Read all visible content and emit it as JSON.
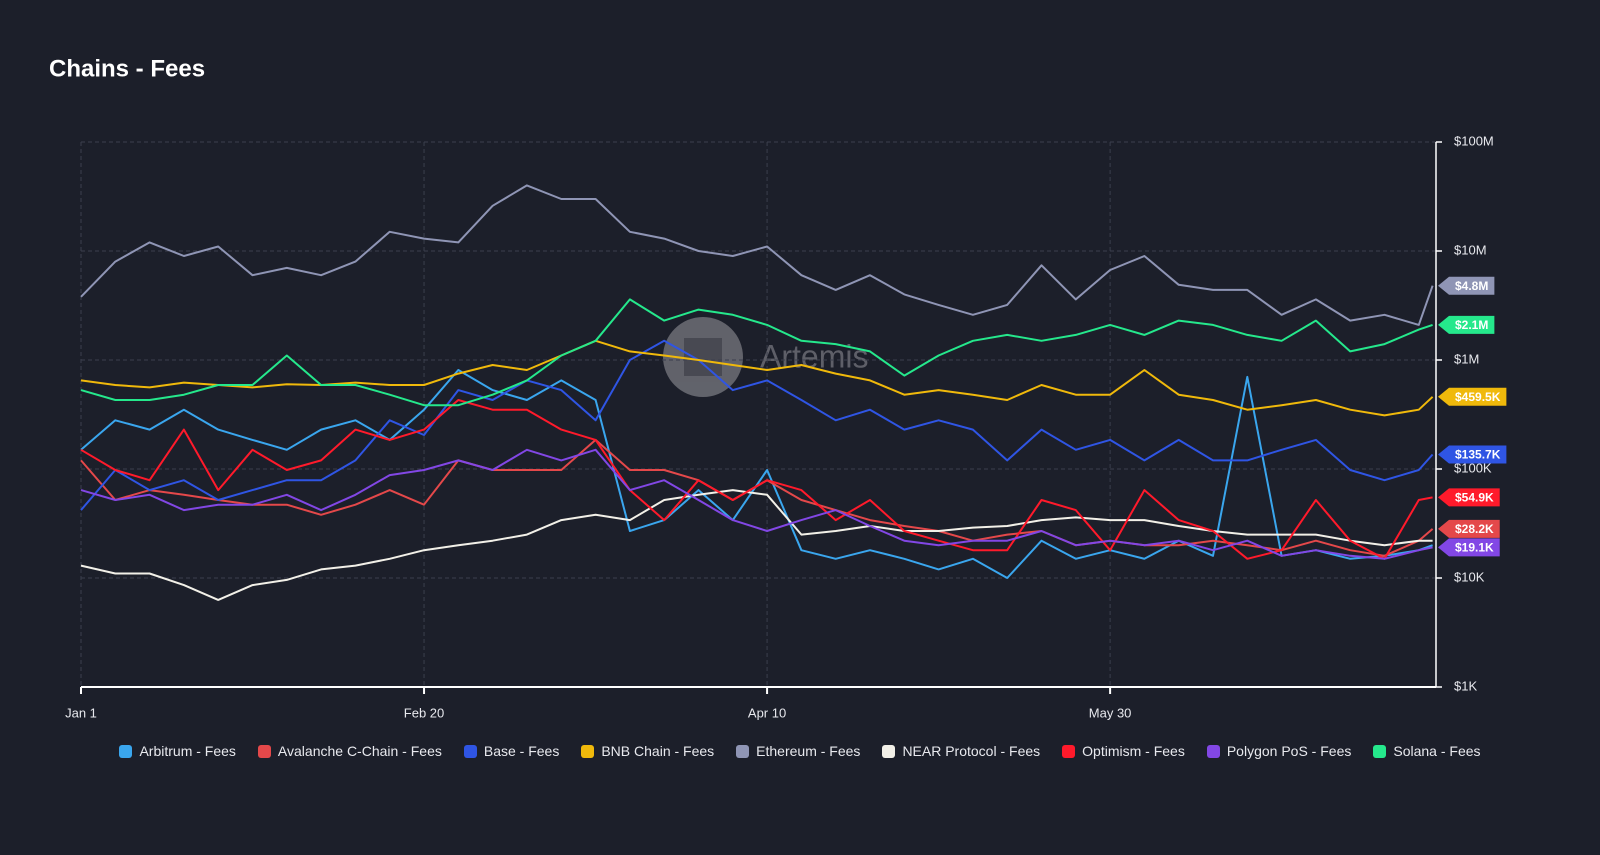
{
  "chart_data": {
    "type": "line",
    "title": "Chains - Fees",
    "watermark": "Artemis",
    "x": [
      0,
      5,
      10,
      15,
      20,
      25,
      30,
      35,
      40,
      45,
      50,
      55,
      60,
      65,
      70,
      75,
      80,
      85,
      90,
      95,
      100,
      105,
      110,
      115,
      120,
      125,
      130,
      135,
      140,
      145,
      150,
      155,
      160,
      165,
      170,
      175,
      180,
      185,
      190,
      195,
      197
    ],
    "xlim": [
      0,
      197.5
    ],
    "xticks": [
      {
        "value": 0,
        "label": "Jan 1"
      },
      {
        "value": 50,
        "label": "Feb 20"
      },
      {
        "value": 100,
        "label": "Apr 10"
      },
      {
        "value": 150,
        "label": "May 30"
      }
    ],
    "yscale": "log",
    "ylim": [
      1000,
      100000000
    ],
    "yticks": [
      {
        "value": 1000,
        "label": "$1K"
      },
      {
        "value": 10000,
        "label": "$10K"
      },
      {
        "value": 100000,
        "label": "$100K"
      },
      {
        "value": 1000000,
        "label": "$1M"
      },
      {
        "value": 10000000,
        "label": "$10M"
      },
      {
        "value": 100000000,
        "label": "$100M"
      }
    ],
    "grid": true,
    "series": [
      {
        "name": "Arbitrum - Fees",
        "color": "#3aa6ee",
        "values": [
          150000,
          280000,
          230000,
          350000,
          230000,
          185000,
          150000,
          230000,
          280000,
          185000,
          350000,
          810000,
          530000,
          430000,
          650000,
          430000,
          27000,
          34000,
          64000,
          34000,
          98000,
          18000,
          15000,
          18000,
          15000,
          12000,
          15000,
          10000,
          22000,
          15000,
          18000,
          15000,
          22000,
          16000,
          700000,
          16000,
          18000,
          15000,
          16000,
          18000,
          20000
        ]
      },
      {
        "name": "Avalanche C-Chain - Fees",
        "color": "#e4484a",
        "values": [
          120000,
          52000,
          64000,
          58000,
          52000,
          47000,
          47000,
          38000,
          47000,
          64000,
          47000,
          120000,
          98000,
          98000,
          98000,
          185000,
          98000,
          98000,
          79000,
          52000,
          79000,
          52000,
          42000,
          34000,
          30000,
          27000,
          22000,
          25000,
          27000,
          20000,
          22000,
          20000,
          20000,
          22000,
          20000,
          18000,
          22000,
          18000,
          16000,
          22000,
          28200
        ],
        "value_labels": [
          null,
          null,
          null,
          null,
          null,
          null,
          null,
          null,
          null,
          null,
          null,
          null,
          null,
          null,
          null,
          null,
          null,
          null,
          null,
          null,
          null,
          null,
          null,
          null,
          null,
          null,
          null,
          null,
          null,
          null,
          null,
          null,
          null,
          null,
          null,
          null,
          null,
          null,
          null,
          null,
          "$28.2K"
        ]
      },
      {
        "name": "Base - Fees",
        "color": "#2f55e4",
        "values": [
          42000,
          98000,
          64000,
          79000,
          52000,
          64000,
          79000,
          79000,
          120000,
          280000,
          205000,
          530000,
          430000,
          650000,
          530000,
          280000,
          1000000,
          1500000,
          1000000,
          530000,
          650000,
          430000,
          280000,
          350000,
          230000,
          280000,
          230000,
          120000,
          230000,
          150000,
          185000,
          120000,
          185000,
          120000,
          120000,
          150000,
          185000,
          98000,
          79000,
          98000,
          135700
        ],
        "value_labels": [
          null,
          null,
          null,
          null,
          null,
          null,
          null,
          null,
          null,
          null,
          null,
          null,
          null,
          null,
          null,
          null,
          null,
          null,
          null,
          null,
          null,
          null,
          null,
          null,
          null,
          null,
          null,
          null,
          null,
          null,
          null,
          null,
          null,
          null,
          null,
          null,
          null,
          null,
          null,
          null,
          "$135.7K"
        ]
      },
      {
        "name": "BNB Chain - Fees",
        "color": "#f0b90b",
        "values": [
          650000,
          590000,
          560000,
          620000,
          590000,
          560000,
          600000,
          590000,
          620000,
          590000,
          590000,
          750000,
          900000,
          810000,
          1100000,
          1500000,
          1200000,
          1100000,
          1000000,
          900000,
          810000,
          900000,
          750000,
          650000,
          480000,
          530000,
          480000,
          430000,
          590000,
          480000,
          480000,
          810000,
          480000,
          430000,
          350000,
          385000,
          430000,
          350000,
          310000,
          350000,
          459500
        ],
        "value_labels": [
          null,
          null,
          null,
          null,
          null,
          null,
          null,
          null,
          null,
          null,
          null,
          null,
          null,
          null,
          null,
          null,
          null,
          null,
          null,
          null,
          null,
          null,
          null,
          null,
          null,
          null,
          null,
          null,
          null,
          null,
          null,
          null,
          null,
          null,
          null,
          null,
          null,
          null,
          null,
          null,
          "$459.5K"
        ]
      },
      {
        "name": "Ethereum - Fees",
        "color": "#8f95b5",
        "values": [
          3800000,
          8000000,
          12000000,
          9000000,
          11000000,
          6000000,
          7000000,
          6000000,
          8000000,
          15000000,
          13000000,
          12000000,
          26000000,
          40000000,
          30000000,
          30000000,
          15000000,
          13000000,
          10000000,
          9000000,
          11000000,
          6000000,
          4400000,
          6000000,
          4000000,
          3200000,
          2600000,
          3200000,
          7400000,
          3600000,
          6700000,
          9000000,
          4900000,
          4400000,
          4400000,
          2600000,
          3600000,
          2300000,
          2600000,
          2100000,
          4800000
        ],
        "value_labels": [
          null,
          null,
          null,
          null,
          null,
          null,
          null,
          null,
          null,
          null,
          null,
          null,
          null,
          null,
          null,
          null,
          null,
          null,
          null,
          null,
          null,
          null,
          null,
          null,
          null,
          null,
          null,
          null,
          null,
          null,
          null,
          null,
          null,
          null,
          null,
          null,
          null,
          null,
          null,
          null,
          "$4.8M"
        ]
      },
      {
        "name": "NEAR Protocol - Fees",
        "color": "#f2f0e8",
        "values": [
          13000,
          11000,
          11000,
          8600,
          6300,
          8600,
          9600,
          12000,
          13000,
          15000,
          18000,
          20000,
          22000,
          25000,
          34000,
          38000,
          34000,
          52000,
          58000,
          64000,
          58000,
          25000,
          27000,
          30000,
          27000,
          27000,
          29000,
          30000,
          34000,
          36000,
          34000,
          34000,
          30000,
          27000,
          25000,
          25000,
          25000,
          22000,
          20000,
          22000,
          22000
        ]
      },
      {
        "name": "Optimism - Fees",
        "color": "#ff1a2b",
        "values": [
          150000,
          98000,
          79000,
          230000,
          64000,
          150000,
          98000,
          120000,
          230000,
          185000,
          230000,
          430000,
          350000,
          350000,
          230000,
          185000,
          64000,
          34000,
          79000,
          52000,
          79000,
          64000,
          34000,
          52000,
          27000,
          22000,
          18000,
          18000,
          52000,
          42000,
          18000,
          64000,
          34000,
          27000,
          15000,
          18000,
          52000,
          22000,
          15000,
          52000,
          54900
        ],
        "value_labels": [
          null,
          null,
          null,
          null,
          null,
          null,
          null,
          null,
          null,
          null,
          null,
          null,
          null,
          null,
          null,
          null,
          null,
          null,
          null,
          null,
          null,
          null,
          null,
          null,
          null,
          null,
          null,
          null,
          null,
          null,
          null,
          null,
          null,
          null,
          null,
          null,
          null,
          null,
          null,
          null,
          "$54.9K"
        ]
      },
      {
        "name": "Polygon PoS - Fees",
        "color": "#8247e5",
        "values": [
          64000,
          52000,
          58000,
          42000,
          47000,
          47000,
          58000,
          42000,
          58000,
          88000,
          98000,
          120000,
          98000,
          150000,
          120000,
          150000,
          64000,
          79000,
          52000,
          34000,
          27000,
          34000,
          42000,
          30000,
          22000,
          20000,
          22000,
          22000,
          27000,
          20000,
          22000,
          20000,
          22000,
          18000,
          22000,
          16000,
          18000,
          16000,
          15000,
          18000,
          19100
        ],
        "value_labels": [
          null,
          null,
          null,
          null,
          null,
          null,
          null,
          null,
          null,
          null,
          null,
          null,
          null,
          null,
          null,
          null,
          null,
          null,
          null,
          null,
          null,
          null,
          null,
          null,
          null,
          null,
          null,
          null,
          null,
          null,
          null,
          null,
          null,
          null,
          null,
          null,
          null,
          null,
          null,
          null,
          "$19.1K"
        ]
      },
      {
        "name": "Solana - Fees",
        "color": "#25e88c",
        "values": [
          530000,
          430000,
          430000,
          480000,
          590000,
          590000,
          1100000,
          590000,
          590000,
          480000,
          385000,
          385000,
          480000,
          650000,
          1100000,
          1500000,
          3600000,
          2300000,
          2900000,
          2600000,
          2100000,
          1500000,
          1400000,
          1200000,
          720000,
          1100000,
          1500000,
          1700000,
          1500000,
          1700000,
          2100000,
          1700000,
          2300000,
          2100000,
          1700000,
          1500000,
          2300000,
          1200000,
          1400000,
          1900000,
          2100000
        ],
        "value_labels": [
          null,
          null,
          null,
          null,
          null,
          null,
          null,
          null,
          null,
          null,
          null,
          null,
          null,
          null,
          null,
          null,
          null,
          null,
          null,
          null,
          null,
          null,
          null,
          null,
          null,
          null,
          null,
          null,
          null,
          null,
          null,
          null,
          null,
          null,
          null,
          null,
          null,
          null,
          null,
          null,
          "$2.1M"
        ]
      }
    ]
  }
}
